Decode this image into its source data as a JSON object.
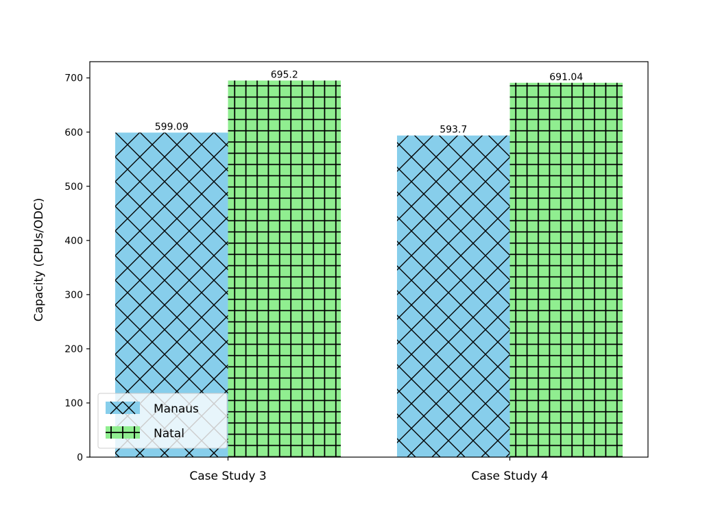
{
  "chart_data": {
    "type": "bar",
    "categories": [
      "Case Study 3",
      "Case Study 4"
    ],
    "series": [
      {
        "name": "Manaus",
        "values": [
          599.09,
          593.7
        ],
        "labels": [
          "599.09",
          "593.7"
        ],
        "color": "#87ceeb",
        "hatch": "diagonal-cross"
      },
      {
        "name": "Natal",
        "values": [
          695.2,
          691.04
        ],
        "labels": [
          "695.2",
          "691.04"
        ],
        "color": "#90ee90",
        "hatch": "grid"
      }
    ],
    "title": "",
    "xlabel": "",
    "ylabel": "Capacity (CPUs/ODC)",
    "ylim": [
      0,
      730
    ],
    "yticks": [
      0,
      100,
      200,
      300,
      400,
      500,
      600,
      700
    ],
    "grid": false,
    "legend_position": "lower-left"
  }
}
